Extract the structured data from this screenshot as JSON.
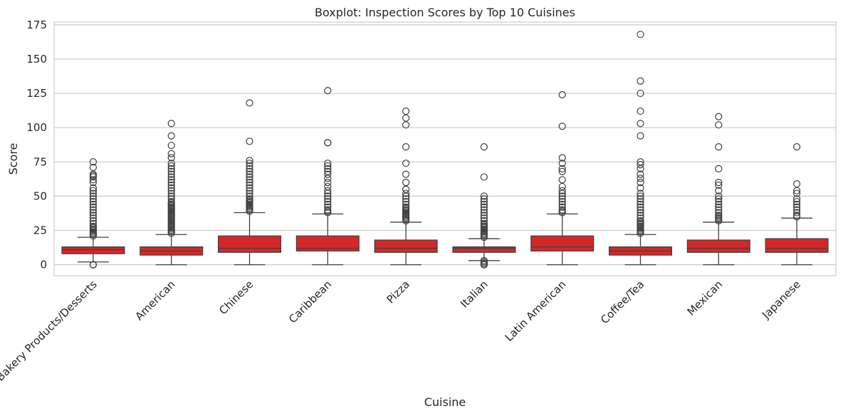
{
  "chart_data": {
    "type": "boxplot",
    "title": "Boxplot: Inspection Scores by Top 10 Cuisines",
    "xlabel": "Cuisine",
    "ylabel": "Score",
    "ylim": [
      -8,
      177
    ],
    "yticks": [
      0,
      25,
      50,
      75,
      100,
      125,
      150,
      175
    ],
    "grid": true,
    "box_color": "#d62728",
    "edge_color": "#3f3f3f",
    "categories": [
      "Bakery Products/Desserts",
      "American",
      "Chinese",
      "Caribbean",
      "Pizza",
      "Italian",
      "Latin American",
      "Coffee/Tea",
      "Mexican",
      "Japanese"
    ],
    "boxes": [
      {
        "category": "Bakery Products/Desserts",
        "whisker_low": 2,
        "q1": 8,
        "median": 11,
        "q3": 13,
        "whisker_high": 20,
        "outliers": [
          0,
          0,
          21,
          22,
          23,
          24,
          25,
          26,
          27,
          28,
          30,
          32,
          34,
          36,
          38,
          40,
          42,
          44,
          46,
          48,
          50,
          52,
          54,
          56,
          60,
          62,
          64,
          65,
          66,
          71,
          75
        ]
      },
      {
        "category": "American",
        "whisker_low": 0,
        "q1": 7,
        "median": 10,
        "q3": 13,
        "whisker_high": 22,
        "outliers": [
          23,
          24,
          25,
          26,
          27,
          28,
          29,
          30,
          31,
          32,
          33,
          34,
          35,
          36,
          37,
          38,
          39,
          40,
          41,
          42,
          43,
          44,
          45,
          46,
          48,
          50,
          52,
          54,
          56,
          58,
          60,
          62,
          64,
          66,
          68,
          70,
          72,
          74,
          78,
          81,
          87,
          94,
          103
        ]
      },
      {
        "category": "Chinese",
        "whisker_low": 0,
        "q1": 9,
        "median": 12,
        "q3": 21,
        "whisker_high": 38,
        "outliers": [
          39,
          40,
          41,
          42,
          43,
          44,
          45,
          46,
          47,
          48,
          50,
          52,
          54,
          56,
          58,
          60,
          62,
          64,
          66,
          68,
          70,
          72,
          74,
          76,
          90,
          118
        ]
      },
      {
        "category": "Caribbean",
        "whisker_low": 0,
        "q1": 10,
        "median": 12,
        "q3": 21,
        "whisker_high": 37,
        "outliers": [
          38,
          39,
          40,
          42,
          44,
          46,
          48,
          50,
          52,
          54,
          57,
          60,
          63,
          66,
          68,
          70,
          72,
          74,
          89,
          89,
          127
        ]
      },
      {
        "category": "Pizza",
        "whisker_low": 0,
        "q1": 9,
        "median": 12,
        "q3": 18,
        "whisker_high": 31,
        "outliers": [
          32,
          33,
          34,
          35,
          36,
          37,
          38,
          39,
          40,
          41,
          42,
          44,
          46,
          48,
          50,
          52,
          55,
          60,
          66,
          74,
          86,
          102,
          107,
          112
        ]
      },
      {
        "category": "Italian",
        "whisker_low": 3,
        "q1": 9,
        "median": 12,
        "q3": 13,
        "whisker_high": 19,
        "outliers": [
          0,
          0,
          1,
          2,
          3,
          20,
          21,
          22,
          23,
          24,
          25,
          26,
          27,
          28,
          29,
          30,
          32,
          34,
          36,
          38,
          40,
          42,
          44,
          46,
          48,
          50,
          64,
          86
        ]
      },
      {
        "category": "Latin American",
        "whisker_low": 0,
        "q1": 10,
        "median": 13,
        "q3": 21,
        "whisker_high": 37,
        "outliers": [
          38,
          39,
          40,
          42,
          44,
          46,
          48,
          50,
          52,
          54,
          57,
          62,
          68,
          70,
          74,
          78,
          101,
          124
        ]
      },
      {
        "category": "Coffee/Tea",
        "whisker_low": 0,
        "q1": 7,
        "median": 10,
        "q3": 13,
        "whisker_high": 22,
        "outliers": [
          23,
          24,
          25,
          26,
          27,
          28,
          29,
          30,
          31,
          32,
          34,
          36,
          38,
          40,
          42,
          44,
          46,
          48,
          50,
          52,
          56,
          60,
          63,
          66,
          70,
          73,
          75,
          94,
          103,
          112,
          125,
          134,
          168
        ]
      },
      {
        "category": "Mexican",
        "whisker_low": 0,
        "q1": 9,
        "median": 12,
        "q3": 18,
        "whisker_high": 31,
        "outliers": [
          32,
          33,
          34,
          35,
          36,
          38,
          40,
          42,
          44,
          46,
          48,
          50,
          54,
          58,
          60,
          70,
          86,
          102,
          108
        ]
      },
      {
        "category": "Japanese",
        "whisker_low": 0,
        "q1": 9,
        "median": 12,
        "q3": 19,
        "whisker_high": 34,
        "outliers": [
          35,
          36,
          38,
          40,
          42,
          44,
          46,
          48,
          52,
          54,
          59,
          86
        ]
      }
    ]
  }
}
